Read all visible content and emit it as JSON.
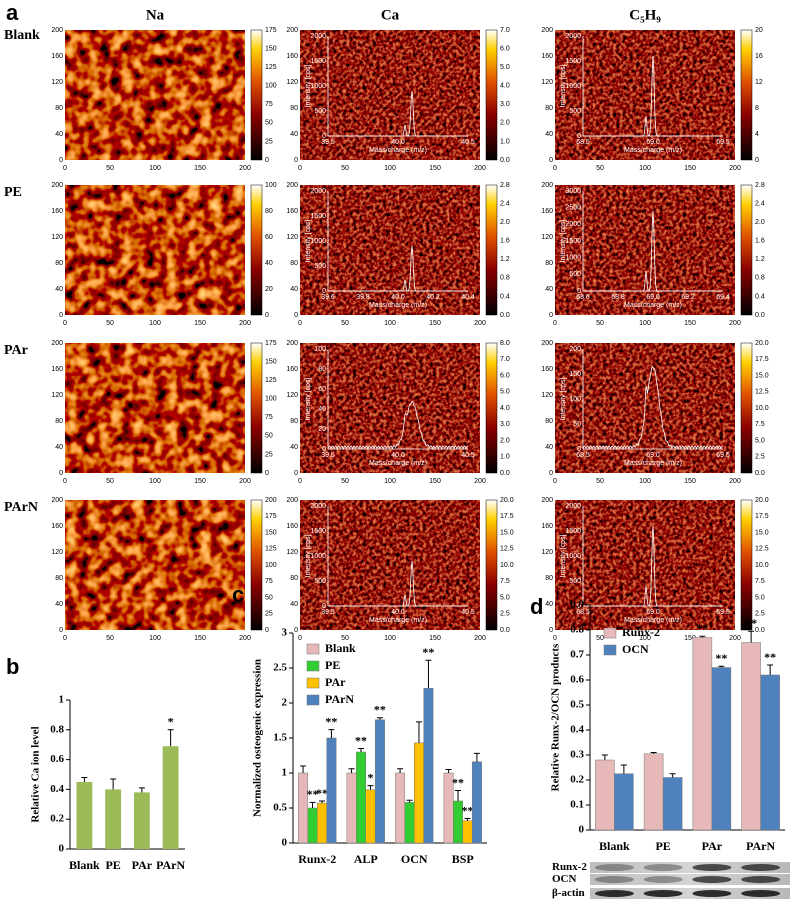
{
  "panel_a": {
    "label": "a",
    "columns": [
      "Na",
      "Ca",
      "C₅H₉"
    ],
    "rows": [
      "Blank",
      "PE",
      "PAr",
      "PArN"
    ],
    "image_xticks": [
      "0",
      "50",
      "100",
      "150",
      "200"
    ],
    "image_yticks": [
      "0",
      "40",
      "80",
      "120",
      "160",
      "200"
    ],
    "inset_ylabel": "Intensity [cps]",
    "inset_xlabel": "Mass/charge (m/z)",
    "cells": [
      [
        {
          "colorbar": [
            "0",
            "25",
            "50",
            "75",
            "100",
            "125",
            "150",
            "175"
          ]
        },
        {
          "colorbar": [
            "0.0",
            "1.0",
            "2.0",
            "3.0",
            "4.0",
            "5.0",
            "6.0",
            "7.0"
          ],
          "inset_yticks": [
            "0",
            "500",
            "1000",
            "1500",
            "2000"
          ],
          "inset_xticks": [
            "39.5",
            "40.0",
            "40.5"
          ]
        },
        {
          "colorbar": [
            "0",
            "4",
            "8",
            "12",
            "16",
            "20"
          ],
          "inset_yticks": [
            "0",
            "500",
            "1000",
            "1500",
            "2000"
          ],
          "inset_xticks": [
            "68.5",
            "69.0",
            "69.5"
          ]
        }
      ],
      [
        {
          "colorbar": [
            "0",
            "20",
            "40",
            "60",
            "80",
            "100"
          ]
        },
        {
          "colorbar": [
            "0.0",
            "0.4",
            "0.8",
            "1.2",
            "1.6",
            "2.0",
            "2.4",
            "2.8"
          ],
          "inset_yticks": [
            "0",
            "500",
            "1000",
            "1500",
            "2000"
          ],
          "inset_xticks": [
            "39.6",
            "39.8",
            "40.0",
            "40.2",
            "40.4"
          ]
        },
        {
          "colorbar": [
            "0.0",
            "0.4",
            "0.8",
            "1.2",
            "1.6",
            "2.0",
            "2.4",
            "2.8"
          ],
          "inset_yticks": [
            "0",
            "500",
            "1000",
            "1500",
            "2000",
            "2500",
            "3000"
          ],
          "inset_xticks": [
            "68.6",
            "68.8",
            "69.0",
            "69.2",
            "69.4"
          ]
        }
      ],
      [
        {
          "colorbar": [
            "0",
            "25",
            "50",
            "75",
            "100",
            "125",
            "150",
            "175"
          ]
        },
        {
          "colorbar": [
            "0.0",
            "1.0",
            "2.0",
            "3.0",
            "4.0",
            "5.0",
            "6.0",
            "7.0",
            "8.0"
          ],
          "inset_yticks": [
            "0",
            "20",
            "40",
            "60",
            "80",
            "100"
          ],
          "inset_xticks": [
            "39.5",
            "40.0",
            "40.5"
          ]
        },
        {
          "colorbar": [
            "0.0",
            "2.5",
            "5.0",
            "7.5",
            "10.0",
            "12.5",
            "15.0",
            "17.5",
            "20.0"
          ],
          "inset_yticks": [
            "0",
            "50",
            "100",
            "150",
            "200"
          ],
          "inset_xticks": [
            "68.5",
            "69.0",
            "69.5"
          ]
        }
      ],
      [
        {
          "colorbar": [
            "0",
            "25",
            "50",
            "75",
            "100",
            "125",
            "150",
            "175",
            "200"
          ]
        },
        {
          "colorbar": [
            "0.0",
            "2.5",
            "5.0",
            "7.5",
            "10.0",
            "12.5",
            "15.0",
            "17.5",
            "20.0"
          ],
          "inset_yticks": [
            "0",
            "500",
            "1000",
            "1500",
            "2000"
          ],
          "inset_xticks": [
            "39.5",
            "40.0",
            "40.5"
          ]
        },
        {
          "colorbar": [
            "0.0",
            "2.5",
            "5.0",
            "7.5",
            "10.0",
            "12.5",
            "15.0",
            "17.5",
            "20.0"
          ],
          "inset_yticks": [
            "0",
            "500",
            "1000",
            "1500",
            "2000"
          ],
          "inset_xticks": [
            "68.5",
            "69.0",
            "69.5"
          ]
        }
      ]
    ]
  },
  "chart_data": [
    {
      "type": "bar",
      "label": "b",
      "y_label": "Relative Ca ion level",
      "categories": [
        "Blank",
        "PE",
        "PAr",
        "PArN"
      ],
      "values": [
        0.45,
        0.4,
        0.38,
        0.69
      ],
      "errors": [
        0.03,
        0.07,
        0.03,
        0.11
      ],
      "significance": [
        null,
        null,
        null,
        "*"
      ],
      "color": "#9bbb59",
      "ylim": [
        0,
        1
      ],
      "yticks": [
        0,
        0.2,
        0.4,
        0.6,
        0.8,
        1
      ]
    },
    {
      "type": "bar",
      "label": "c",
      "y_label": "Normalized osteogenic expression",
      "categories": [
        "Runx-2",
        "ALP",
        "OCN",
        "BSP"
      ],
      "legend": "upper left",
      "series": [
        {
          "name": "Blank",
          "color": "#e6b9b8",
          "values": [
            1.0,
            1.0,
            1.0,
            1.0
          ],
          "errors": [
            0.1,
            0.06,
            0.06,
            0.05
          ],
          "significance": [
            null,
            null,
            null,
            null
          ]
        },
        {
          "name": "PE",
          "color": "#33cc33",
          "values": [
            0.5,
            1.3,
            0.58,
            0.6
          ],
          "errors": [
            0.08,
            0.05,
            0.03,
            0.15
          ],
          "significance": [
            "**",
            "**",
            null,
            "**"
          ]
        },
        {
          "name": "PAr",
          "color": "#ffc000",
          "values": [
            0.57,
            0.76,
            1.43,
            0.32
          ],
          "errors": [
            0.03,
            0.06,
            0.3,
            0.03
          ],
          "significance": [
            "**",
            "*",
            null,
            "**"
          ]
        },
        {
          "name": "PArN",
          "color": "#4f81bd",
          "values": [
            1.5,
            1.76,
            2.21,
            1.16
          ],
          "errors": [
            0.12,
            0.03,
            0.4,
            0.12
          ],
          "significance": [
            "**",
            "**",
            "**",
            null
          ]
        }
      ],
      "ylim": [
        0,
        3
      ],
      "yticks": [
        0,
        0.5,
        1,
        1.5,
        2,
        2.5,
        3
      ]
    },
    {
      "type": "bar",
      "label": "d",
      "y_label": "Relative Runx-2/OCN products",
      "categories": [
        "Blank",
        "PE",
        "PAr",
        "PArN"
      ],
      "legend": "upper left",
      "series": [
        {
          "name": "Runx-2",
          "color": "#e6b9b8",
          "values": [
            0.28,
            0.305,
            0.77,
            0.75
          ],
          "errors": [
            0.02,
            0.005,
            0.005,
            0.045
          ],
          "significance": [
            null,
            null,
            "**",
            "**"
          ]
        },
        {
          "name": "OCN",
          "color": "#4f81bd",
          "values": [
            0.225,
            0.21,
            0.65,
            0.62
          ],
          "errors": [
            0.035,
            0.015,
            0.005,
            0.04
          ],
          "significance": [
            null,
            null,
            "**",
            "**"
          ]
        }
      ],
      "ylim": [
        0,
        0.9
      ],
      "yticks": [
        0,
        0.1,
        0.2,
        0.3,
        0.4,
        0.5,
        0.6,
        0.7,
        0.8,
        0.9
      ],
      "blot_labels": [
        "Runx-2",
        "OCN",
        "β-actin"
      ]
    }
  ]
}
